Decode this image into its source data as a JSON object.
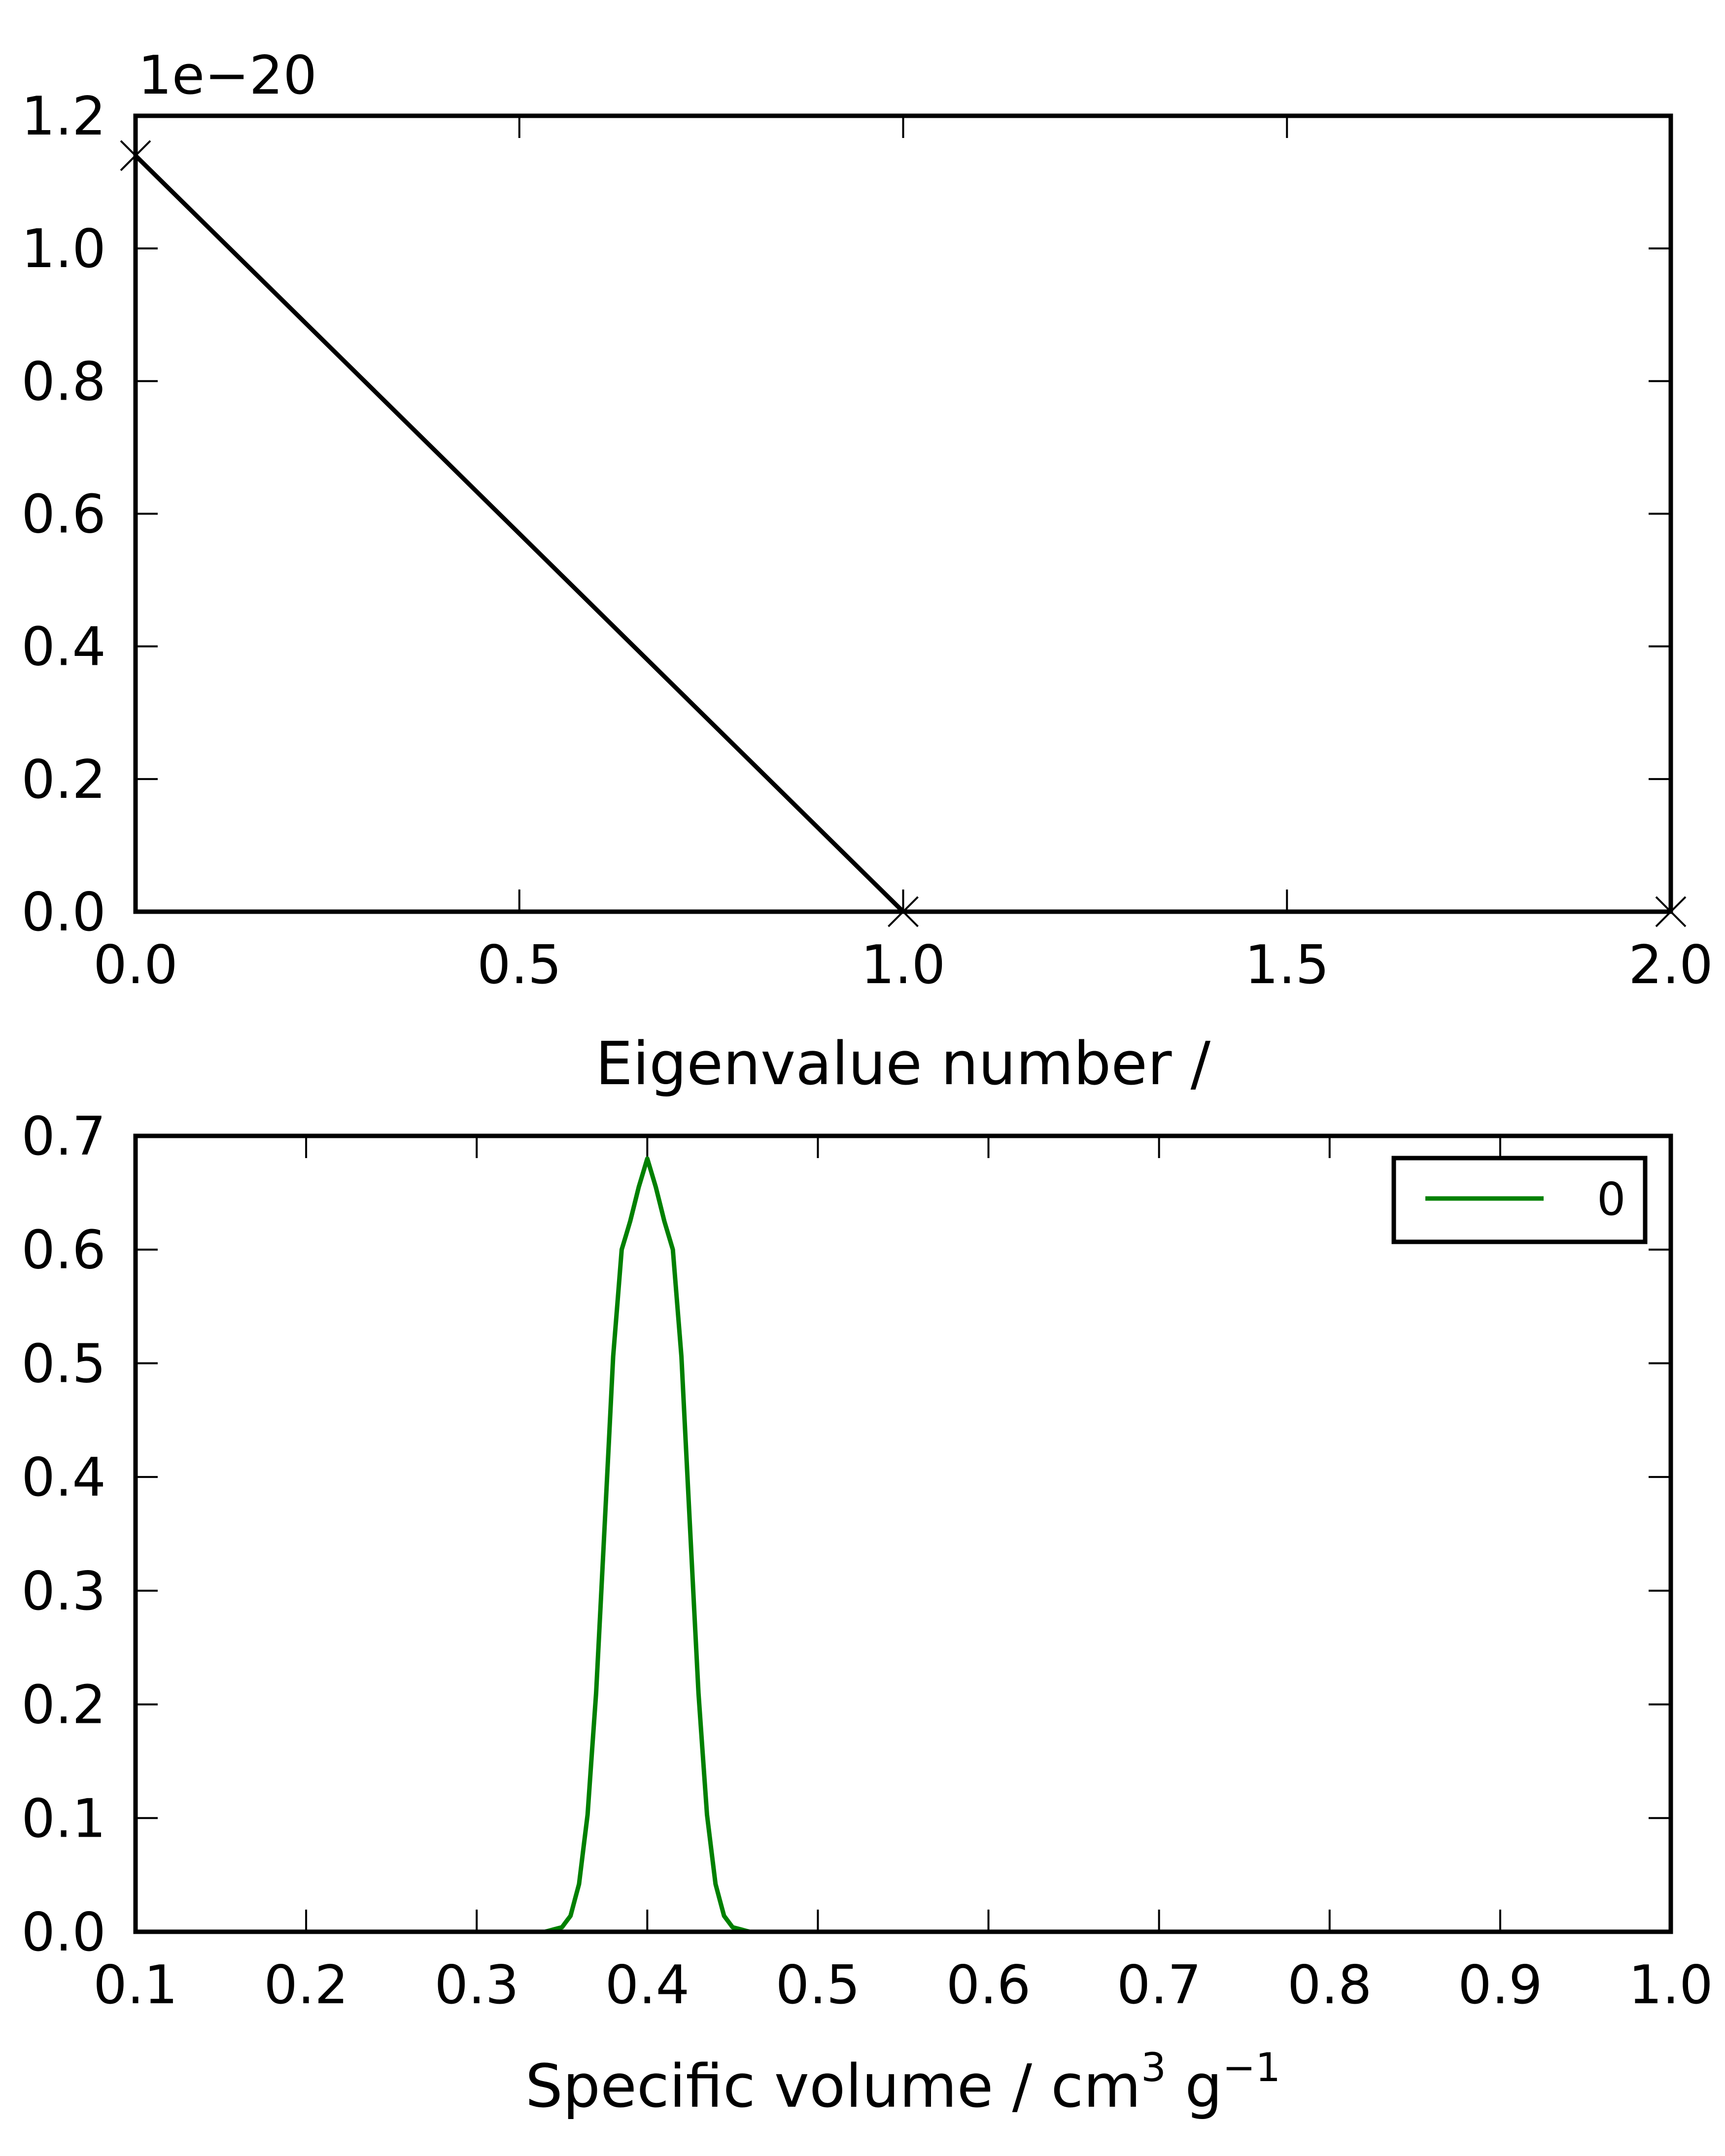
{
  "chart_data": [
    {
      "type": "line",
      "title": "",
      "xlabel": "Eigenvalue number /",
      "ylabel": "",
      "y_offset_text": "1e−20",
      "xlim": [
        0.0,
        2.0
      ],
      "ylim": [
        0.0,
        1.2
      ],
      "y_scale": 1e-20,
      "grid": false,
      "legend": "none",
      "x_ticks": [
        "0.0",
        "0.5",
        "1.0",
        "1.5",
        "2.0"
      ],
      "y_ticks": [
        "0.0",
        "0.2",
        "0.4",
        "0.6",
        "0.8",
        "1.0",
        "1.2"
      ],
      "series": [
        {
          "color": "#000000",
          "marker": "x",
          "x": [
            0,
            1,
            2
          ],
          "y": [
            1.14,
            0.0,
            0.0
          ]
        }
      ]
    },
    {
      "type": "line",
      "title": "",
      "xlabel": "Specific volume / cm",
      "xlabel_sup1": "3",
      "xlabel_mid": " g",
      "xlabel_sup2": "−1",
      "ylabel": "",
      "xlim": [
        0.1,
        1.0
      ],
      "ylim": [
        0.0,
        0.7
      ],
      "grid": false,
      "legend": "top-right",
      "x_ticks": [
        "0.1",
        "0.2",
        "0.3",
        "0.4",
        "0.5",
        "0.6",
        "0.7",
        "0.8",
        "0.9",
        "1.0"
      ],
      "y_ticks": [
        "0.0",
        "0.1",
        "0.2",
        "0.3",
        "0.4",
        "0.5",
        "0.6",
        "0.7"
      ],
      "series": [
        {
          "name": "0",
          "color": "#008000",
          "x": [
            0.34,
            0.35,
            0.355,
            0.36,
            0.365,
            0.37,
            0.375,
            0.38,
            0.385,
            0.39,
            0.395,
            0.4,
            0.405,
            0.41,
            0.415,
            0.42,
            0.425,
            0.43,
            0.435,
            0.44,
            0.445,
            0.45,
            0.46,
            1.0
          ],
          "y": [
            0.0,
            0.004,
            0.014,
            0.042,
            0.103,
            0.21,
            0.357,
            0.506,
            0.6,
            0.625,
            0.655,
            0.68,
            0.655,
            0.625,
            0.6,
            0.506,
            0.357,
            0.21,
            0.103,
            0.042,
            0.014,
            0.004,
            0.0,
            0.0
          ]
        }
      ]
    }
  ]
}
